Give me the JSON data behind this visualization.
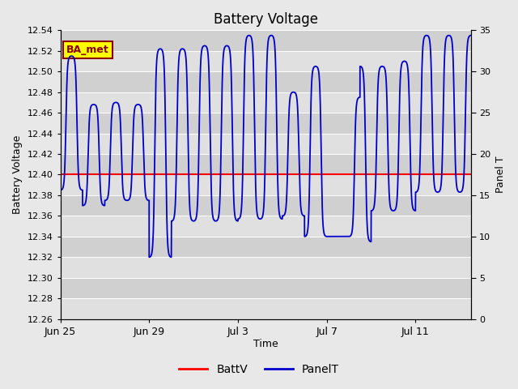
{
  "title": "Battery Voltage",
  "ylabel_left": "Battery Voltage",
  "ylabel_right": "Panel T",
  "xlabel": "Time",
  "ylim_left": [
    12.26,
    12.54
  ],
  "ylim_right": [
    0,
    35
  ],
  "yticks_left": [
    12.26,
    12.28,
    12.3,
    12.32,
    12.34,
    12.36,
    12.38,
    12.4,
    12.42,
    12.44,
    12.46,
    12.48,
    12.5,
    12.52,
    12.54
  ],
  "yticks_right": [
    0,
    5,
    10,
    15,
    20,
    25,
    30,
    35
  ],
  "batt_v": 12.4,
  "batt_color": "#ff0000",
  "panel_color": "#0000cd",
  "bg_color": "#e8e8e8",
  "plot_bg_light": "#e0e0e0",
  "plot_bg_dark": "#cccccc",
  "annotation_text": "BA_met",
  "annotation_bg": "#ffff00",
  "annotation_border": "#8b0000",
  "legend_labels": [
    "BattV",
    "PanelT"
  ],
  "tick_labels_x": [
    "Jun 25",
    "Jun 29",
    "Jul 3",
    "Jul 7",
    "Jul 11"
  ],
  "tick_positions_x": [
    0,
    4,
    8,
    12,
    16
  ],
  "total_days": 18.5
}
